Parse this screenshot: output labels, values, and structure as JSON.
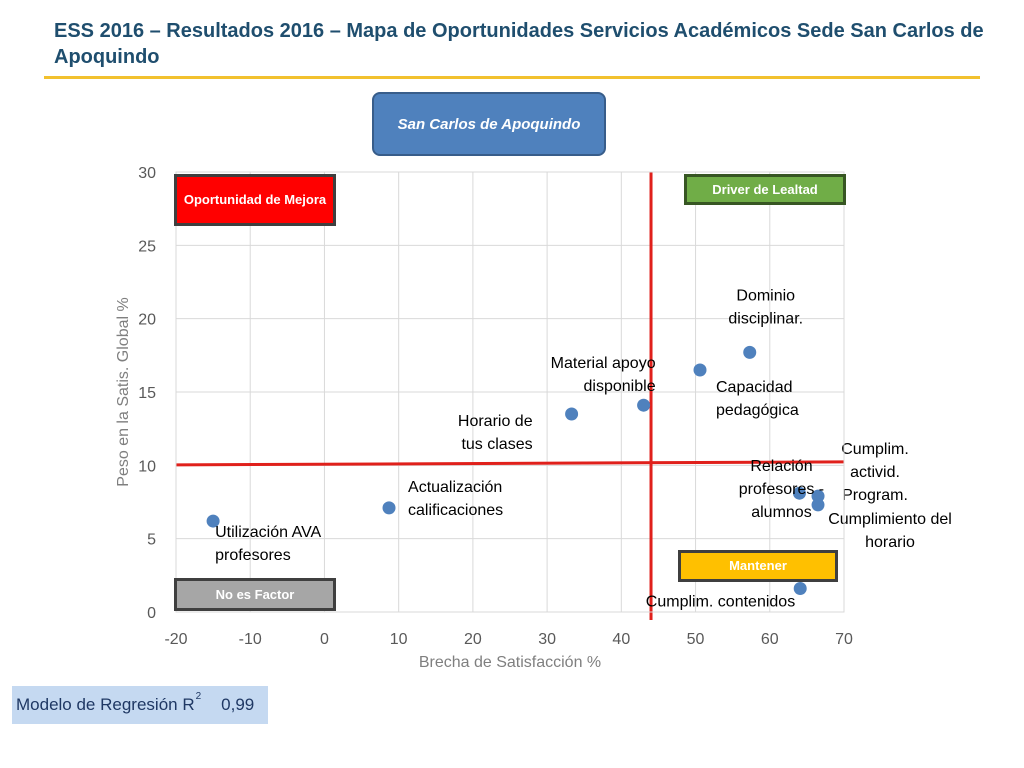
{
  "header": {
    "title": "ESS 2016 – Resultados 2016 – Mapa de Oportunidades Servicios Académicos Sede San Carlos de Apoquindo"
  },
  "site_label": "San Carlos de Apoquindo",
  "quadrants": {
    "opportunity": "Oportunidad de Mejora",
    "driver": "Driver de Lealtad",
    "not_factor": "No es Factor",
    "maintain": "Mantener"
  },
  "regression": {
    "label": "Modelo de Regresión R",
    "superscript": "2",
    "value": "0,99"
  },
  "colors": {
    "marker": "#4f81bd",
    "threshold_lines": "#e0201b",
    "opportunity": "#ff0000",
    "driver": "#70ad47",
    "not_factor": "#a6a6a6",
    "maintain": "#ffc000"
  },
  "chart_data": {
    "type": "scatter",
    "xlabel": "Brecha de Satisfacción %",
    "ylabel": "Peso en la Satis. Global %",
    "xlim": [
      -20,
      70
    ],
    "ylim": [
      0,
      30
    ],
    "xticks": [
      -20,
      -10,
      0,
      10,
      20,
      30,
      40,
      50,
      60,
      70
    ],
    "yticks": [
      0,
      5,
      10,
      15,
      20,
      25,
      30
    ],
    "grid": true,
    "threshold_x": 44,
    "threshold_y": 10.1,
    "points": [
      {
        "label": "Utilización AVA profesores",
        "x": -15,
        "y": 6.2
      },
      {
        "label": "Actualización calificaciones",
        "x": 8.7,
        "y": 7.1
      },
      {
        "label": "Horario de tus clases",
        "x": 33.3,
        "y": 13.5
      },
      {
        "label": "Material apoyo disponible",
        "x": 43,
        "y": 14.1
      },
      {
        "label": "Capacidad pedagógica",
        "x": 50.6,
        "y": 16.5
      },
      {
        "label": "Dominio disciplinar.",
        "x": 57.3,
        "y": 17.7
      },
      {
        "label": "Relación profesores - alumnos",
        "x": 64,
        "y": 8.1
      },
      {
        "label": "Cumplim. activid. Program.",
        "x": 66.5,
        "y": 7.9
      },
      {
        "label": "Cumplimiento del horario",
        "x": 66.5,
        "y": 7.3
      },
      {
        "label": "Cumplim. contenidos",
        "x": 64.1,
        "y": 1.6
      }
    ]
  }
}
